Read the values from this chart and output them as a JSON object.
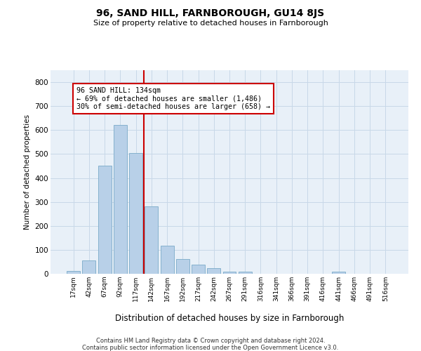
{
  "title1": "96, SAND HILL, FARNBOROUGH, GU14 8JS",
  "title2": "Size of property relative to detached houses in Farnborough",
  "xlabel": "Distribution of detached houses by size in Farnborough",
  "ylabel": "Number of detached properties",
  "categories": [
    "17sqm",
    "42sqm",
    "67sqm",
    "92sqm",
    "117sqm",
    "142sqm",
    "167sqm",
    "192sqm",
    "217sqm",
    "242sqm",
    "267sqm",
    "291sqm",
    "316sqm",
    "341sqm",
    "366sqm",
    "391sqm",
    "416sqm",
    "441sqm",
    "466sqm",
    "491sqm",
    "516sqm"
  ],
  "values": [
    12,
    55,
    450,
    620,
    505,
    280,
    118,
    62,
    37,
    22,
    10,
    8,
    0,
    0,
    0,
    0,
    0,
    10,
    0,
    0,
    0
  ],
  "bar_color": "#b8d0e8",
  "bar_edge_color": "#7aaac8",
  "vline_color": "#cc0000",
  "annotation_lines": [
    "96 SAND HILL: 134sqm",
    "← 69% of detached houses are smaller (1,486)",
    "30% of semi-detached houses are larger (658) →"
  ],
  "annotation_box_color": "#ffffff",
  "annotation_box_edge_color": "#cc0000",
  "ylim": [
    0,
    850
  ],
  "yticks": [
    0,
    100,
    200,
    300,
    400,
    500,
    600,
    700,
    800
  ],
  "grid_color": "#c8d8e8",
  "bg_color": "#e8f0f8",
  "footer1": "Contains HM Land Registry data © Crown copyright and database right 2024.",
  "footer2": "Contains public sector information licensed under the Open Government Licence v3.0."
}
